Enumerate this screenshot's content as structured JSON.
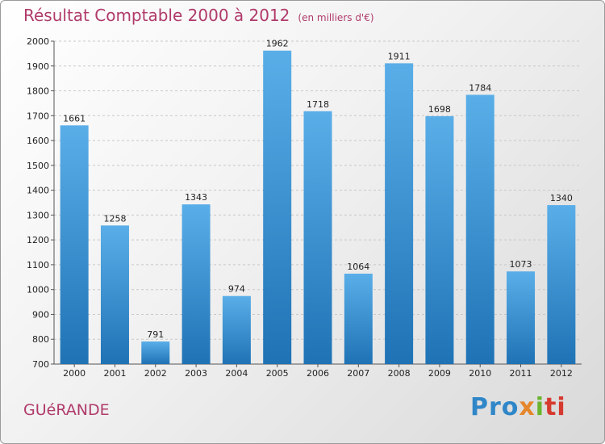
{
  "header": {
    "title": "Résultat Comptable 2000 à 2012",
    "unit": "(en milliers d'€)"
  },
  "footer": {
    "town": "GUéRANDE",
    "logo_parts": [
      "Pro",
      "x",
      "i",
      "ti"
    ]
  },
  "colors": {
    "title": "#b03a6a",
    "bar_top": "#5aaee8",
    "bar_bottom": "#1f73b5"
  },
  "chart_data": {
    "type": "bar",
    "title": "Résultat Comptable 2000 à 2012",
    "ylabel": "en milliers d'€",
    "xlabel": "",
    "categories": [
      "2000",
      "2001",
      "2002",
      "2003",
      "2004",
      "2005",
      "2006",
      "2007",
      "2008",
      "2009",
      "2010",
      "2011",
      "2012"
    ],
    "values": [
      1661,
      1258,
      791,
      1343,
      974,
      1962,
      1718,
      1064,
      1911,
      1698,
      1784,
      1073,
      1340
    ],
    "ylim": [
      700,
      2000
    ],
    "yticks": [
      700,
      800,
      900,
      1000,
      1100,
      1200,
      1300,
      1400,
      1500,
      1600,
      1700,
      1800,
      1900,
      2000
    ],
    "grid": true
  }
}
